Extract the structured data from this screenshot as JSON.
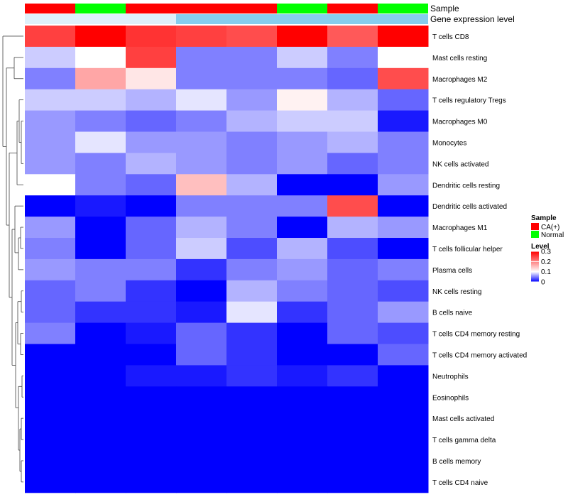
{
  "chart_data": {
    "type": "heatmap",
    "annotation_tracks": [
      {
        "name": "Sample",
        "values": [
          "CA(+)",
          "Normal",
          "CA(+)",
          "CA(+)",
          "CA(+)",
          "Normal",
          "CA(+)",
          "Normal"
        ]
      },
      {
        "name": "Gene expression level",
        "values": [
          "Low",
          "Low",
          "Low",
          "High",
          "High",
          "High",
          "High",
          "High"
        ]
      }
    ],
    "rows": [
      "T cells CD8",
      "Mast cells resting",
      "Macrophages M2",
      "T cells regulatory  Tregs",
      "Macrophages M0",
      "Monocytes",
      "NK cells activated",
      "Dendritic cells resting",
      "Dendritic cells activated",
      "Macrophages M1",
      "T cells follicular helper",
      "Plasma cells",
      "NK cells resting",
      "B cells naive",
      "T cells CD4 memory resting",
      "T cells CD4 memory activated",
      "Neutrophils",
      "Eosinophils",
      "Mast cells activated",
      "T cells gamma delta",
      "B cells memory",
      "T cells CD4 naive"
    ],
    "values": [
      [
        0.25,
        0.3,
        0.26,
        0.25,
        0.24,
        0.3,
        0.23,
        0.3
      ],
      [
        0.08,
        0.1,
        0.25,
        0.05,
        0.05,
        0.08,
        0.05,
        0.1
      ],
      [
        0.05,
        0.17,
        0.12,
        0.05,
        0.05,
        0.05,
        0.04,
        0.24
      ],
      [
        0.08,
        0.08,
        0.07,
        0.09,
        0.06,
        0.11,
        0.07,
        0.04
      ],
      [
        0.06,
        0.05,
        0.04,
        0.05,
        0.07,
        0.08,
        0.08,
        0.01
      ],
      [
        0.06,
        0.09,
        0.06,
        0.06,
        0.05,
        0.06,
        0.07,
        0.05
      ],
      [
        0.06,
        0.05,
        0.07,
        0.06,
        0.05,
        0.06,
        0.04,
        0.05
      ],
      [
        0.1,
        0.05,
        0.04,
        0.15,
        0.07,
        0.0,
        0.0,
        0.06
      ],
      [
        0.0,
        0.01,
        0.0,
        0.05,
        0.05,
        0.05,
        0.24,
        0.0
      ],
      [
        0.06,
        0.0,
        0.04,
        0.07,
        0.05,
        0.0,
        0.07,
        0.06
      ],
      [
        0.05,
        0.0,
        0.04,
        0.08,
        0.03,
        0.07,
        0.03,
        0.0
      ],
      [
        0.06,
        0.05,
        0.05,
        0.02,
        0.05,
        0.06,
        0.04,
        0.05
      ],
      [
        0.04,
        0.05,
        0.02,
        0.0,
        0.07,
        0.05,
        0.04,
        0.03
      ],
      [
        0.04,
        0.02,
        0.02,
        0.01,
        0.09,
        0.02,
        0.04,
        0.06
      ],
      [
        0.05,
        0.0,
        0.01,
        0.04,
        0.02,
        0.0,
        0.04,
        0.03
      ],
      [
        0.0,
        0.0,
        0.0,
        0.04,
        0.02,
        0.0,
        0.0,
        0.04
      ],
      [
        0.0,
        0.0,
        0.01,
        0.01,
        0.02,
        0.01,
        0.02,
        0.0
      ],
      [
        0.0,
        0.0,
        0.0,
        0.0,
        0.0,
        0.0,
        0.0,
        0.0
      ],
      [
        0.0,
        0.0,
        0.0,
        0.0,
        0.0,
        0.0,
        0.0,
        0.0
      ],
      [
        0.0,
        0.0,
        0.0,
        0.0,
        0.0,
        0.0,
        0.0,
        0.0
      ],
      [
        0.0,
        0.0,
        0.0,
        0.0,
        0.0,
        0.0,
        0.0,
        0.0
      ],
      [
        0.0,
        0.0,
        0.0,
        0.0,
        0.0,
        0.0,
        0.0,
        0.0
      ]
    ],
    "color_scale": {
      "min": 0,
      "mid": 0.1,
      "max": 0.3,
      "low_color": "#0000ff",
      "mid_color": "#ffffff",
      "high_color": "#ff0000"
    },
    "legend": {
      "sample_title": "Sample",
      "sample_entries": [
        {
          "label": "CA(+)",
          "color": "#ff0000"
        },
        {
          "label": "Normal",
          "color": "#00ff00"
        }
      ],
      "level_title": "Level",
      "level_ticks": [
        {
          "label": "0.3",
          "value": 0.3
        },
        {
          "label": "0.2",
          "value": 0.2
        },
        {
          "label": "0.1",
          "value": 0.1
        },
        {
          "label": "0",
          "value": 0
        }
      ]
    },
    "annotation_colors": {
      "Sample": {
        "CA(+)": "#ff0000",
        "Normal": "#00ff00"
      },
      "Gene expression level": {
        "Low": "#dff0fa",
        "High": "#86cdee"
      }
    },
    "dendrogram": "row-clustered (left side)"
  }
}
